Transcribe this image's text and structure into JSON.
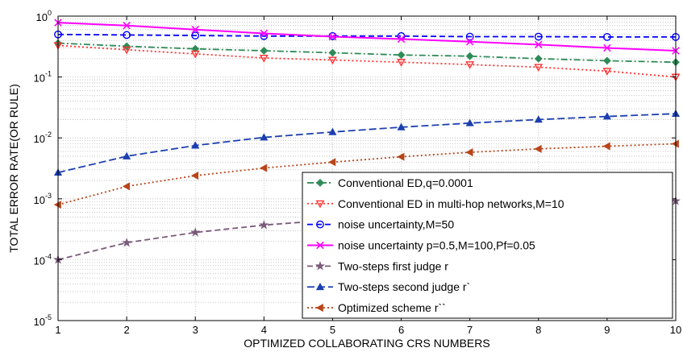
{
  "chart_data": {
    "type": "line",
    "xlabel": "OPTIMIZED COLLABORATING CRS NUMBERS",
    "ylabel": "TOTAL ERROR RATE(OR RULE)",
    "x": [
      1,
      2,
      3,
      4,
      5,
      6,
      7,
      8,
      9,
      10
    ],
    "xlim": [
      1,
      10
    ],
    "ylim": [
      1e-05,
      1
    ],
    "yscale": "log",
    "grid": true,
    "legend_position": "bottom-right",
    "x_tick_labels": [
      "1",
      "2",
      "3",
      "4",
      "5",
      "6",
      "7",
      "8",
      "9",
      "10"
    ],
    "y_tick_labels": [
      {
        "base": "10",
        "exp": "-5"
      },
      {
        "base": "10",
        "exp": "-4"
      },
      {
        "base": "10",
        "exp": "-3"
      },
      {
        "base": "10",
        "exp": "-2"
      },
      {
        "base": "10",
        "exp": "-1"
      },
      {
        "base": "10",
        "exp": "0"
      }
    ],
    "series": [
      {
        "name": "Conventional ED,q=0.0001",
        "color": "#2e8b57",
        "marker": "diamond",
        "dash": "8,3,2,3",
        "values": [
          0.36,
          0.32,
          0.29,
          0.27,
          0.25,
          0.23,
          0.22,
          0.2,
          0.185,
          0.175
        ]
      },
      {
        "name": "Conventional ED in multi-hop networks,M=10",
        "color": "#ff3030",
        "marker": "triangle-down",
        "dash": "2,3",
        "values": [
          0.33,
          0.28,
          0.24,
          0.205,
          0.19,
          0.175,
          0.16,
          0.145,
          0.125,
          0.1
        ]
      },
      {
        "name": "noise uncertainty,M=50",
        "color": "#0000ff",
        "marker": "circle",
        "dash": "7,4",
        "values": [
          0.5,
          0.49,
          0.48,
          0.47,
          0.47,
          0.47,
          0.46,
          0.46,
          0.455,
          0.455
        ]
      },
      {
        "name": "noise uncertainty p=0.5,M=100,Pf=0.05",
        "color": "#ff00ff",
        "marker": "x",
        "dash": "",
        "values": [
          0.78,
          0.7,
          0.6,
          0.52,
          0.46,
          0.42,
          0.38,
          0.34,
          0.3,
          0.27
        ]
      },
      {
        "name": "Two-steps first judge r",
        "color": "#7a5a7a",
        "marker": "star",
        "dash": "7,4",
        "values": [
          0.0001,
          0.00019,
          0.00028,
          0.00037,
          0.00045,
          0.00055,
          0.00063,
          0.00072,
          0.0008,
          0.00092
        ]
      },
      {
        "name": "Two-steps second judge r`",
        "color": "#1c3fb0",
        "marker": "triangle-up",
        "dash": "9,4",
        "values": [
          0.0027,
          0.005,
          0.0075,
          0.0102,
          0.0125,
          0.015,
          0.0175,
          0.02,
          0.0225,
          0.025
        ]
      },
      {
        "name": "Optimized scheme r``",
        "color": "#b8451a",
        "marker": "triangle-left",
        "dash": "2,3",
        "values": [
          0.0008,
          0.0016,
          0.0024,
          0.0032,
          0.004,
          0.0049,
          0.0058,
          0.0066,
          0.0073,
          0.008
        ]
      }
    ]
  }
}
